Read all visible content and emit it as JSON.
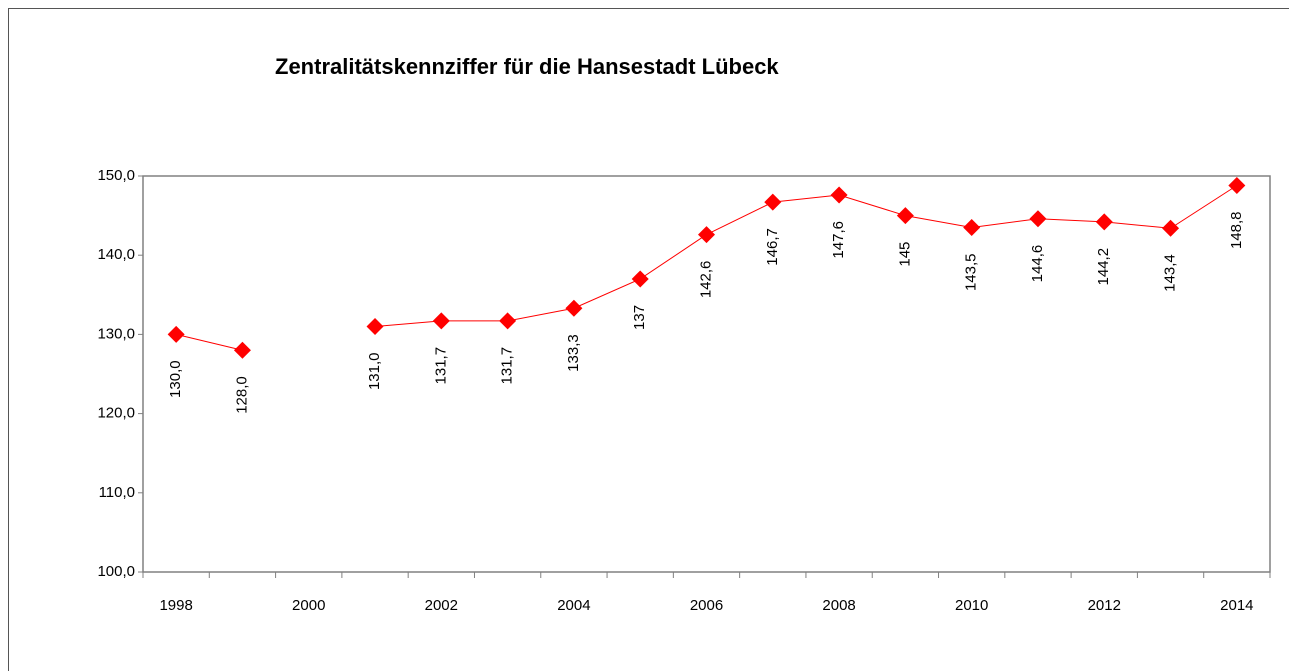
{
  "chart_data": {
    "type": "line",
    "title": "Zentralitätskennziffer für die Hansestadt Lübeck",
    "categories": [
      "1998",
      null,
      "2000",
      null,
      "2002",
      null,
      "2004",
      null,
      "2006",
      null,
      "2008",
      null,
      "2010",
      null,
      "2012",
      null,
      "2014"
    ],
    "values": [
      130.0,
      128.0,
      null,
      131.0,
      131.7,
      131.7,
      133.3,
      137,
      142.6,
      146.7,
      147.6,
      145,
      143.5,
      144.6,
      144.2,
      143.4,
      148.8
    ],
    "value_labels": [
      "130,0",
      "128,0",
      null,
      "131,0",
      "131,7",
      "131,7",
      "133,3",
      "137",
      "142,6",
      "146,7",
      "147,6",
      "145",
      "143,5",
      "144,6",
      "144,2",
      "143,4",
      "148,8"
    ],
    "color": "#ff0000",
    "ylim": [
      100,
      150
    ],
    "yticks": [
      {
        "value": 100,
        "label": "100,0"
      },
      {
        "value": 110,
        "label": "110,0"
      },
      {
        "value": 120,
        "label": "120,0"
      },
      {
        "value": 130,
        "label": "130,0"
      },
      {
        "value": 140,
        "label": "140,0"
      },
      {
        "value": 150,
        "label": "150,0"
      }
    ]
  }
}
